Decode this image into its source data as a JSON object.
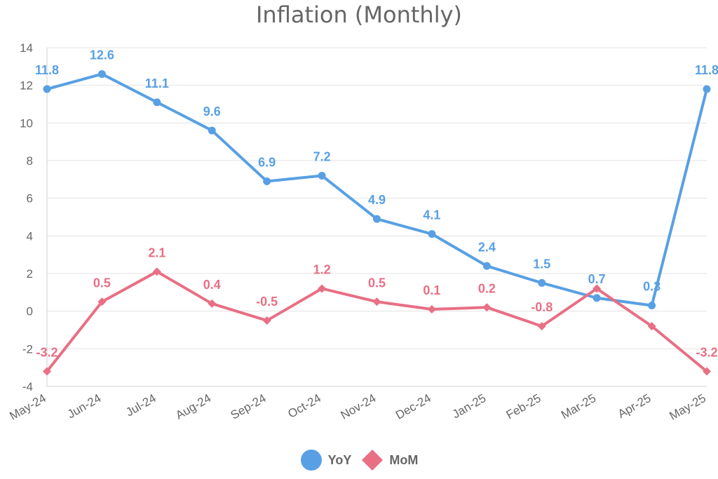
{
  "chart_data": {
    "type": "line",
    "title": "Inflation (Monthly)",
    "categories": [
      "May-24",
      "Jun-24",
      "Jul-24",
      "Aug-24",
      "Sep-24",
      "Oct-24",
      "Nov-24",
      "Dec-24",
      "Jan-25",
      "Feb-25",
      "Mar-25",
      "Apr-25",
      "May-25"
    ],
    "series": [
      {
        "name": "YoY",
        "color": "#58a0e3",
        "marker": "circle",
        "values": [
          11.8,
          12.6,
          11.1,
          9.6,
          6.9,
          7.2,
          4.9,
          4.1,
          2.4,
          1.5,
          0.7,
          0.3,
          11.8
        ]
      },
      {
        "name": "MoM",
        "color": "#e86f84",
        "marker": "diamond",
        "values": [
          -3.2,
          0.5,
          2.1,
          0.4,
          -0.5,
          1.2,
          0.5,
          0.1,
          0.2,
          -0.8,
          1.2,
          -0.8,
          -3.2
        ],
        "labels": [
          "-3.2",
          "0.5",
          "2.1",
          "0.4",
          "-0.5",
          "1.2",
          "0.5",
          "0.1",
          "0.2",
          "-0.8",
          "",
          "",
          "-3.2"
        ]
      }
    ],
    "ylim": [
      -4,
      14
    ],
    "yticks": [
      -4,
      -2,
      0,
      2,
      4,
      6,
      8,
      10,
      12,
      14
    ],
    "grid": true,
    "legend_position": "bottom"
  }
}
